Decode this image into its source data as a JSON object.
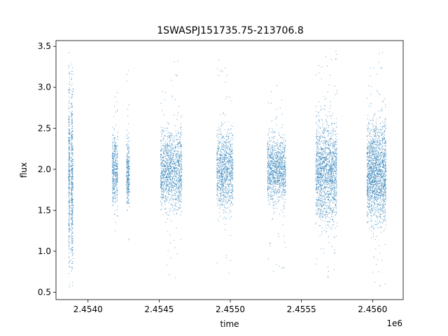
{
  "chart_data": {
    "type": "scatter",
    "title": "1SWASPJ151735.75-213706.8",
    "xlabel": "time",
    "ylabel": "flux",
    "x_offset_label": "1e6",
    "xlim": [
      2453775,
      2456215
    ],
    "ylim": [
      0.41,
      3.57
    ],
    "x_ticks": [
      2.454,
      2.4545,
      2.455,
      2.4555,
      2.456
    ],
    "x_tick_labels": [
      "2.4540",
      "2.4545",
      "2.4550",
      "2.4555",
      "2.4560"
    ],
    "y_ticks": [
      0.5,
      1.0,
      1.5,
      2.0,
      2.5,
      3.0,
      3.5
    ],
    "y_tick_labels": [
      "0.5",
      "1.0",
      "1.5",
      "2.0",
      "2.5",
      "3.0",
      "3.5"
    ],
    "grid": false,
    "marker_color": "#1f77b4",
    "series": [
      {
        "name": "",
        "clusters": [
          {
            "x_range": [
              2453863,
              2453872
            ],
            "y_center": 2.0,
            "y_spread": 0.55,
            "y_min": 0.55,
            "y_max": 3.42,
            "density": 320
          },
          {
            "x_range": [
              2453880,
              2453895
            ],
            "y_center": 1.9,
            "y_spread": 0.55,
            "y_min": 0.58,
            "y_max": 3.45,
            "density": 420
          },
          {
            "x_range": [
              2454170,
              2454210
            ],
            "y_center": 2.0,
            "y_spread": 0.22,
            "y_min": 1.22,
            "y_max": 3.0,
            "density": 420
          },
          {
            "x_range": [
              2454270,
              2454292
            ],
            "y_center": 1.95,
            "y_spread": 0.2,
            "y_min": 1.1,
            "y_max": 3.3,
            "density": 280
          },
          {
            "x_range": [
              2454510,
              2454660
            ],
            "y_center": 2.0,
            "y_spread": 0.24,
            "y_min": 0.63,
            "y_max": 3.33,
            "density": 1300
          },
          {
            "x_range": [
              2454905,
              2455020
            ],
            "y_center": 2.0,
            "y_spread": 0.24,
            "y_min": 0.6,
            "y_max": 3.38,
            "density": 1000
          },
          {
            "x_range": [
              2455260,
              2455390
            ],
            "y_center": 2.0,
            "y_spread": 0.2,
            "y_min": 0.75,
            "y_max": 3.05,
            "density": 1100
          },
          {
            "x_range": [
              2455600,
              2455750
            ],
            "y_center": 1.97,
            "y_spread": 0.3,
            "y_min": 0.65,
            "y_max": 3.45,
            "density": 1600
          },
          {
            "x_range": [
              2455960,
              2456095
            ],
            "y_center": 1.97,
            "y_spread": 0.3,
            "y_min": 0.53,
            "y_max": 3.43,
            "density": 1800
          }
        ]
      }
    ]
  }
}
